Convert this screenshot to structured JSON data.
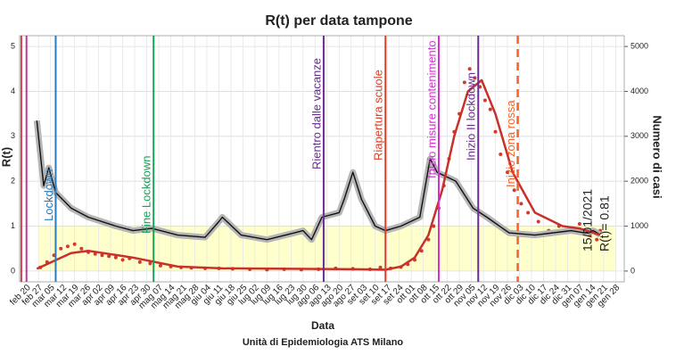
{
  "chart_data": {
    "type": "line",
    "title": "R(t) per data tampone",
    "x_label": "Data",
    "y_label": "R(t)",
    "y2_label": "Numero di casi",
    "caption": "Unità di Epidemiologia ATS Milano",
    "note": [
      "15/01/2021",
      "R(t)= 0.81"
    ],
    "grid": true,
    "xlim": [
      -4,
      348
    ],
    "ylim": [
      -0.24,
      5.24
    ],
    "y2lim": [
      -240,
      5240
    ],
    "yticks": [
      0,
      1,
      2,
      3,
      4,
      5
    ],
    "y2ticks": [
      0,
      1000,
      2000,
      3000,
      4000,
      5000
    ],
    "xticks": [
      {
        "value": 0,
        "label": "feb 20"
      },
      {
        "value": 7,
        "label": "feb 27"
      },
      {
        "value": 14,
        "label": "mar 05"
      },
      {
        "value": 21,
        "label": "mar 12"
      },
      {
        "value": 28,
        "label": "mar 19"
      },
      {
        "value": 35,
        "label": "mar 26"
      },
      {
        "value": 42,
        "label": "apr 02"
      },
      {
        "value": 49,
        "label": "apr 09"
      },
      {
        "value": 56,
        "label": "apr 16"
      },
      {
        "value": 63,
        "label": "apr 23"
      },
      {
        "value": 70,
        "label": "apr 30"
      },
      {
        "value": 77,
        "label": "mag 07"
      },
      {
        "value": 84,
        "label": "mag 14"
      },
      {
        "value": 91,
        "label": "mag 21"
      },
      {
        "value": 98,
        "label": "mag 28"
      },
      {
        "value": 105,
        "label": "giu 04"
      },
      {
        "value": 112,
        "label": "giu 11"
      },
      {
        "value": 119,
        "label": "giu 18"
      },
      {
        "value": 126,
        "label": "giu 25"
      },
      {
        "value": 133,
        "label": "lug 02"
      },
      {
        "value": 140,
        "label": "lug 09"
      },
      {
        "value": 147,
        "label": "lug 16"
      },
      {
        "value": 154,
        "label": "lug 23"
      },
      {
        "value": 161,
        "label": "lug 30"
      },
      {
        "value": 168,
        "label": "ago 06"
      },
      {
        "value": 175,
        "label": "ago 13"
      },
      {
        "value": 182,
        "label": "ago 20"
      },
      {
        "value": 189,
        "label": "ago 27"
      },
      {
        "value": 196,
        "label": "set 03"
      },
      {
        "value": 203,
        "label": "set 10"
      },
      {
        "value": 210,
        "label": "set 17"
      },
      {
        "value": 217,
        "label": "set 24"
      },
      {
        "value": 224,
        "label": "ott 01"
      },
      {
        "value": 231,
        "label": "ott 08"
      },
      {
        "value": 238,
        "label": "ott 15"
      },
      {
        "value": 245,
        "label": "ott 22"
      },
      {
        "value": 252,
        "label": "ott 29"
      },
      {
        "value": 259,
        "label": "nov 05"
      },
      {
        "value": 266,
        "label": "nov 12"
      },
      {
        "value": 273,
        "label": "nov 19"
      },
      {
        "value": 280,
        "label": "nov 26"
      },
      {
        "value": 287,
        "label": "dic 03"
      },
      {
        "value": 294,
        "label": "dic 10"
      },
      {
        "value": 301,
        "label": "dic 17"
      },
      {
        "value": 308,
        "label": "dic 24"
      },
      {
        "value": 315,
        "label": "dic 31"
      },
      {
        "value": 322,
        "label": "gen 07"
      },
      {
        "value": 329,
        "label": "gen 14"
      },
      {
        "value": 336,
        "label": "gen 21"
      },
      {
        "value": 343,
        "label": "gen 28"
      }
    ],
    "reference_band": {
      "ymin": 0,
      "ymax": 1,
      "color": "#ffffcc"
    },
    "events": [
      {
        "x": -3,
        "color": "#d6404e"
      },
      {
        "x": 0,
        "color": "#c2369a"
      },
      {
        "x": 17,
        "label": "Lockdown",
        "color": "#2b7bba"
      },
      {
        "x": 74,
        "label": "Fine Lockdown",
        "color": "#1b9e57"
      },
      {
        "x": 173,
        "label": "Rientro dalle vacanze",
        "color": "#6a2c91"
      },
      {
        "x": 209,
        "label": "Riapertura scuole",
        "color": "#d9402b"
      },
      {
        "x": 240,
        "label": "Inizio misure contenimento",
        "color": "#d42fd0"
      },
      {
        "x": 263,
        "label": "Inizio II lockdown",
        "color": "#6a2c91"
      },
      {
        "x": 286,
        "label": "Inizio zona rossa",
        "color": "#f0642a",
        "dashed": true
      }
    ],
    "series": [
      {
        "kind": "line",
        "color": "#111111",
        "band_color": "#b5b5b5",
        "x": [
          6,
          10,
          13,
          17,
          26,
          36,
          52,
          62,
          73,
          88,
          104,
          112,
          114,
          125,
          140,
          156,
          161,
          166,
          172,
          182,
          185,
          190,
          195,
          203,
          209,
          218,
          229,
          235,
          239,
          250,
          260,
          268,
          281,
          296,
          317,
          325,
          330,
          334
        ],
        "values": [
          3.35,
          1.9,
          2.3,
          1.75,
          1.4,
          1.2,
          1.0,
          0.9,
          0.95,
          0.8,
          0.75,
          1.1,
          1.2,
          0.8,
          0.7,
          0.85,
          0.9,
          0.7,
          1.2,
          1.3,
          1.6,
          2.2,
          1.6,
          1.0,
          0.9,
          1.0,
          1.2,
          2.5,
          2.2,
          2.0,
          1.4,
          1.2,
          0.85,
          0.8,
          0.9,
          0.85,
          0.9,
          0.81
        ]
      },
      {
        "kind": "points",
        "axis": "y2",
        "color": "#d23a2e",
        "x": [
          8,
          12,
          16,
          20,
          24,
          28,
          32,
          36,
          40,
          44,
          48,
          52,
          56,
          60,
          66,
          72,
          78,
          84,
          90,
          96,
          104,
          112,
          120,
          130,
          140,
          150,
          160,
          170,
          180,
          190,
          200,
          206,
          212,
          218,
          222,
          226,
          230,
          234,
          237,
          240,
          243,
          246,
          249,
          252,
          255,
          258,
          261,
          264,
          267,
          270,
          273,
          276,
          280,
          284,
          288,
          292,
          298,
          304,
          310,
          316,
          322,
          328,
          332,
          334
        ],
        "values": [
          80,
          200,
          350,
          500,
          550,
          600,
          500,
          420,
          380,
          350,
          330,
          300,
          250,
          280,
          200,
          170,
          120,
          100,
          80,
          70,
          60,
          60,
          50,
          40,
          30,
          40,
          30,
          40,
          60,
          50,
          40,
          80,
          60,
          90,
          150,
          250,
          450,
          700,
          1000,
          1400,
          1900,
          2500,
          3100,
          3500,
          4200,
          4500,
          4300,
          4100,
          3800,
          3600,
          3100,
          2600,
          2200,
          1800,
          1500,
          1300,
          1100,
          900,
          1000,
          950,
          1050,
          800,
          700,
          900
        ]
      },
      {
        "kind": "line",
        "axis": "y2",
        "color": "#c8302a",
        "width": 2.5,
        "x": [
          6,
          26,
          36,
          62,
          88,
          114,
          192,
          209,
          218,
          226,
          234,
          242,
          249,
          257,
          265,
          273,
          283,
          296,
          312,
          322,
          334
        ],
        "values": [
          50,
          400,
          450,
          300,
          100,
          60,
          40,
          30,
          100,
          300,
          800,
          1800,
          3000,
          4000,
          4250,
          3500,
          2200,
          1300,
          1000,
          950,
          800
        ]
      }
    ]
  }
}
